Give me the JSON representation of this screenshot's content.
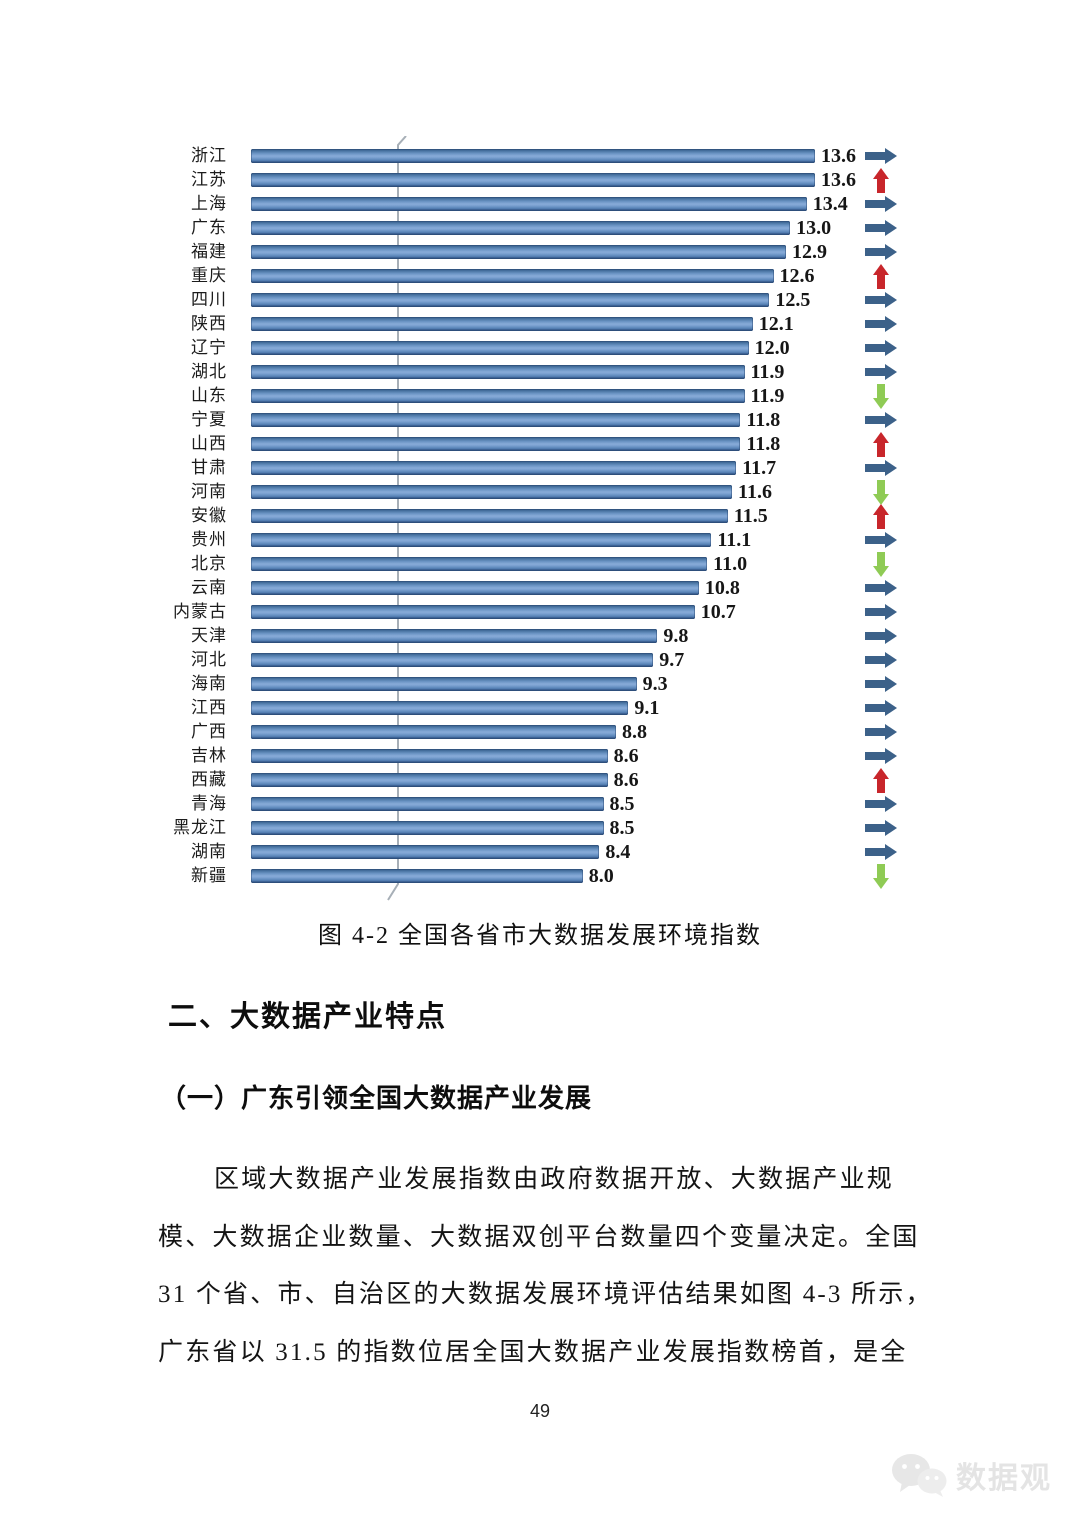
{
  "chart_data": {
    "type": "bar",
    "orientation": "horizontal",
    "title": "图 4-2 全国各省市大数据发展环境指数",
    "categories": [
      "浙江",
      "江苏",
      "上海",
      "广东",
      "福建",
      "重庆",
      "四川",
      "陕西",
      "辽宁",
      "湖北",
      "山东",
      "宁夏",
      "山西",
      "甘肃",
      "河南",
      "安徽",
      "贵州",
      "北京",
      "云南",
      "内蒙古",
      "天津",
      "河北",
      "海南",
      "江西",
      "广西",
      "吉林",
      "西藏",
      "青海",
      "黑龙江",
      "湖南",
      "新疆"
    ],
    "values": [
      13.6,
      13.6,
      13.4,
      13.0,
      12.9,
      12.6,
      12.5,
      12.1,
      12.0,
      11.9,
      11.9,
      11.8,
      11.8,
      11.7,
      11.6,
      11.5,
      11.1,
      11.0,
      10.8,
      10.7,
      9.8,
      9.7,
      9.3,
      9.1,
      8.8,
      8.6,
      8.6,
      8.5,
      8.5,
      8.4,
      8.0
    ],
    "trends": [
      "right",
      "up",
      "right",
      "right",
      "right",
      "up",
      "right",
      "right",
      "right",
      "right",
      "down",
      "right",
      "up",
      "right",
      "down",
      "up",
      "right",
      "down",
      "right",
      "right",
      "right",
      "right",
      "right",
      "right",
      "right",
      "right",
      "up",
      "right",
      "right",
      "right",
      "down"
    ],
    "xlim": [
      0,
      13.6
    ],
    "bar_color": "#4f81bd",
    "trend_colors": {
      "up": "#c8262b",
      "down": "#8fcb55",
      "right": "#3c6189"
    },
    "legend": "none",
    "grid": "off"
  },
  "figure": {
    "caption": "图 4-2 全国各省市大数据发展环境指数"
  },
  "sections": {
    "heading": "二、大数据产业特点",
    "subheading": "（一）广东引领全国大数据产业发展",
    "paragraph_lines": [
      "区域大数据产业发展指数由政府数据开放、大数据产业规",
      "模、大数据企业数量、大数据双创平台数量四个变量决定。全国",
      "31 个省、市、自治区的大数据发展环境评估结果如图 4-3 所示，",
      "广东省以 31.5 的指数位居全国大数据产业发展指数榜首，是全"
    ]
  },
  "footer": {
    "page_number": "49"
  },
  "watermark": {
    "label": "数据观",
    "icon": "wechat-icon",
    "color": "#e4e4e4"
  }
}
